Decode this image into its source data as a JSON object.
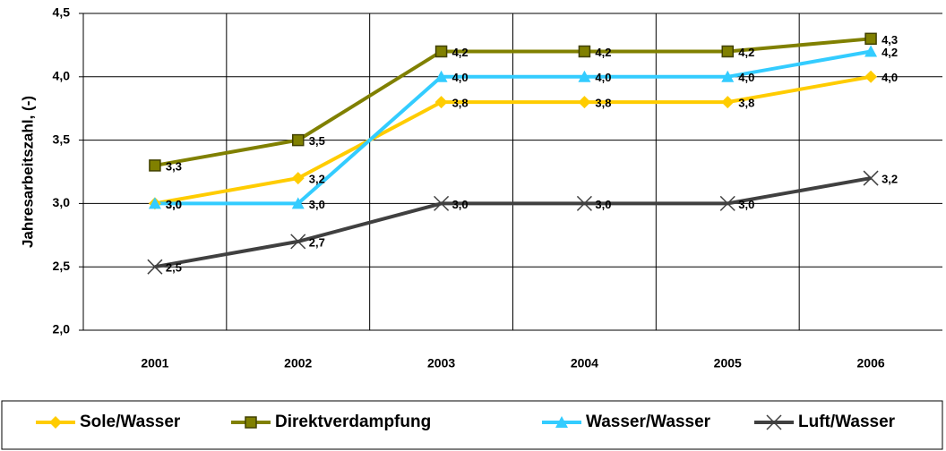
{
  "chart_data": {
    "type": "line",
    "y_label": "Jahresarbeitszahl, (-)",
    "categories": [
      "2001",
      "2002",
      "2003",
      "2004",
      "2005",
      "2006"
    ],
    "ylim": [
      2.0,
      4.5
    ],
    "yticks": [
      {
        "value": 2.0,
        "label": "2,0"
      },
      {
        "value": 2.5,
        "label": "2,5"
      },
      {
        "value": 3.0,
        "label": "3,0"
      },
      {
        "value": 3.5,
        "label": "3,5"
      },
      {
        "value": 4.0,
        "label": "4,0"
      },
      {
        "value": 4.5,
        "label": "4,5"
      }
    ],
    "grid": true,
    "legend": "bottom",
    "series": [
      {
        "name": "Sole/Wasser",
        "color": "#FFCC00",
        "marker": "diamond",
        "values": [
          3.0,
          3.2,
          3.8,
          3.8,
          3.8,
          4.0
        ],
        "value_labels": [
          "3,0",
          "3,2",
          "3,8",
          "3,8",
          "3,8",
          "4,0"
        ]
      },
      {
        "name": "Direktverdampfung",
        "color": "#808000",
        "marker": "square",
        "values": [
          3.3,
          3.5,
          4.2,
          4.2,
          4.2,
          4.3
        ],
        "value_labels": [
          "3,3",
          "3,5",
          "4,2",
          "4,2",
          "4,2",
          "4,3"
        ]
      },
      {
        "name": "Wasser/Wasser",
        "color": "#33CCFF",
        "marker": "triangle",
        "values": [
          3.0,
          3.0,
          4.0,
          4.0,
          4.0,
          4.2
        ],
        "value_labels": [
          "3,0",
          "3,0",
          "4,0",
          "4,0",
          "4,0",
          "4,2"
        ]
      },
      {
        "name": "Luft/Wasser",
        "color": "#404040",
        "marker": "x",
        "values": [
          2.5,
          2.7,
          3.0,
          3.0,
          3.0,
          3.2
        ],
        "value_labels": [
          "2,5",
          "2,7",
          "3,0",
          "3,0",
          "3,0",
          "3,2"
        ]
      }
    ]
  }
}
